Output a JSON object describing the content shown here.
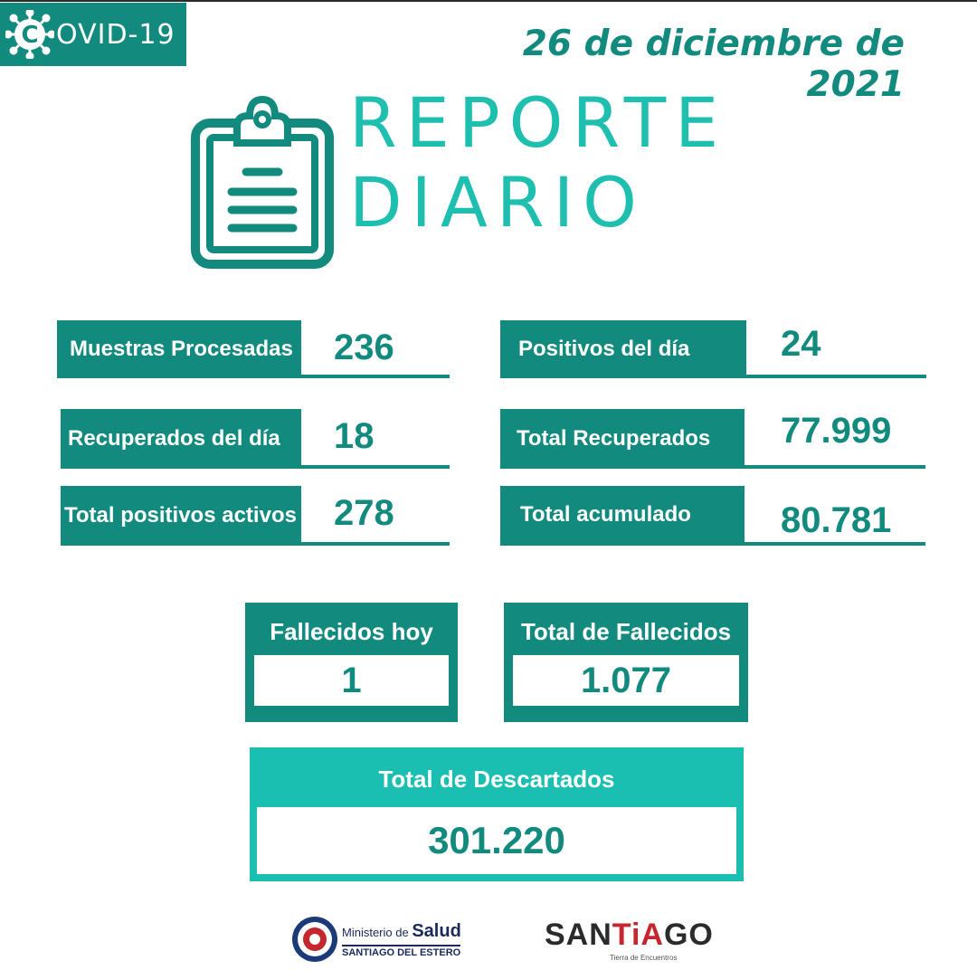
{
  "header": {
    "badge_text": "OVID-19",
    "badge_logo_letter": "C",
    "date": "26 de diciembre de 2021"
  },
  "title": {
    "line1": "REPORTE",
    "line2": "DIARIO"
  },
  "stats": {
    "muestras": {
      "label": "Muestras Procesadas",
      "value": "236"
    },
    "positivos_dia": {
      "label": "Positivos del día",
      "value": "24"
    },
    "recuperados_dia": {
      "label": "Recuperados del día",
      "value": "18"
    },
    "total_recuperados": {
      "label": "Total Recuperados",
      "value": "77.999"
    },
    "positivos_activos": {
      "label": "Total positivos activos",
      "value": "278"
    },
    "total_acumulado": {
      "label": "Total acumulado",
      "value": "80.781"
    }
  },
  "deaths": {
    "hoy": {
      "label": "Fallecidos hoy",
      "value": "1"
    },
    "total": {
      "label": "Total de Fallecidos",
      "value": "1.077"
    }
  },
  "descartados": {
    "label": "Total de Descartados",
    "value": "301.220"
  },
  "footer": {
    "ministry_prefix": "Ministerio de",
    "ministry_big": "Salud",
    "ministry_sub": "SANTIAGO DEL ESTERO",
    "brand_a": "SAN",
    "brand_b": "TiA",
    "brand_c": "GO",
    "brand_tag": "Tierra de Encuentros"
  },
  "colors": {
    "primary": "#128b7e",
    "accent": "#1fbfb0",
    "white": "#ffffff"
  }
}
